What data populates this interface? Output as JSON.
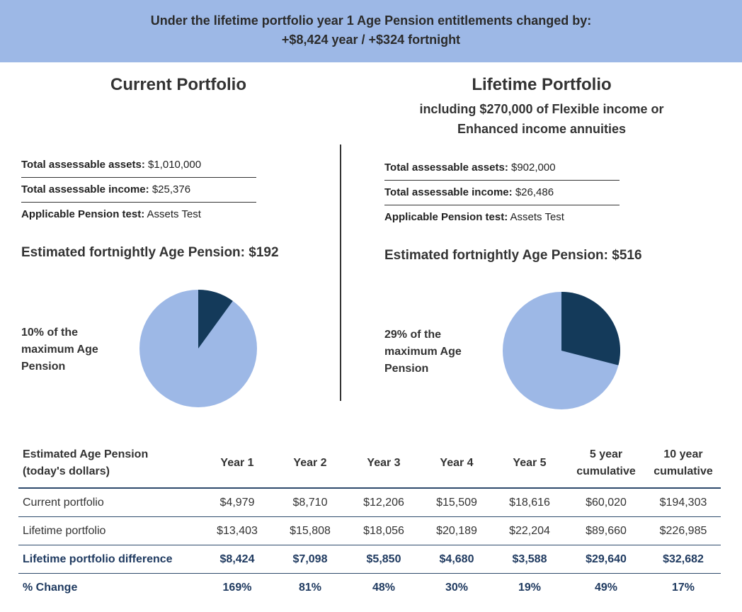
{
  "banner": {
    "line1": "Under the lifetime portfolio year 1 Age Pension entitlements changed by:",
    "line2": "+$8,424 year / +$324 fortnight"
  },
  "current": {
    "title": "Current Portfolio",
    "assets_label": "Total assessable assets:",
    "assets_value": "$1,010,000",
    "income_label": "Total assessable income:",
    "income_value": "$25,376",
    "test_label": "Applicable Pension test:",
    "test_value": "Assets Test",
    "estimate": "Estimated fortnightly Age Pension: $192",
    "pie_percent": 10,
    "pie_label_lines": [
      "10% of the",
      "maximum Age",
      "Pension"
    ]
  },
  "lifetime": {
    "title": "Lifetime Portfolio",
    "subtitle_lines": [
      "including $270,000 of Flexible income or",
      "Enhanced income annuities"
    ],
    "assets_label": "Total assessable assets:",
    "assets_value": "$902,000",
    "income_label": "Total assessable income:",
    "income_value": "$26,486",
    "test_label": "Applicable Pension test:",
    "test_value": "Assets Test",
    "estimate": "Estimated fortnightly Age Pension: $516",
    "pie_percent": 29,
    "pie_label_lines": [
      "29% of the",
      "maximum Age",
      "Pension"
    ]
  },
  "colors": {
    "banner": "#9db8e6",
    "pie_light": "#9db8e6",
    "pie_dark": "#143a5a",
    "table_accent": "#1f3a60"
  },
  "table": {
    "header_first": [
      "Estimated Age Pension",
      "(today's dollars)"
    ],
    "columns": [
      [
        "Year 1"
      ],
      [
        "Year 2"
      ],
      [
        "Year 3"
      ],
      [
        "Year 4"
      ],
      [
        "Year 5"
      ],
      [
        "5 year",
        "cumulative"
      ],
      [
        "10 year",
        "cumulative"
      ]
    ],
    "rows": [
      {
        "label": "Current portfolio",
        "values": [
          "$4,979",
          "$8,710",
          "$12,206",
          "$15,509",
          "$18,616",
          "$60,020",
          "$194,303"
        ],
        "cls": ""
      },
      {
        "label": "Lifetime portfolio",
        "values": [
          "$13,403",
          "$15,808",
          "$18,056",
          "$20,189",
          "$22,204",
          "$89,660",
          "$226,985"
        ],
        "cls": ""
      },
      {
        "label": "Lifetime portfolio difference",
        "values": [
          "$8,424",
          "$7,098",
          "$5,850",
          "$4,680",
          "$3,588",
          "$29,640",
          "$32,682"
        ],
        "cls": "diff"
      },
      {
        "label": "% Change",
        "values": [
          "169%",
          "81%",
          "48%",
          "30%",
          "19%",
          "49%",
          "17%"
        ],
        "cls": "pct"
      }
    ]
  }
}
